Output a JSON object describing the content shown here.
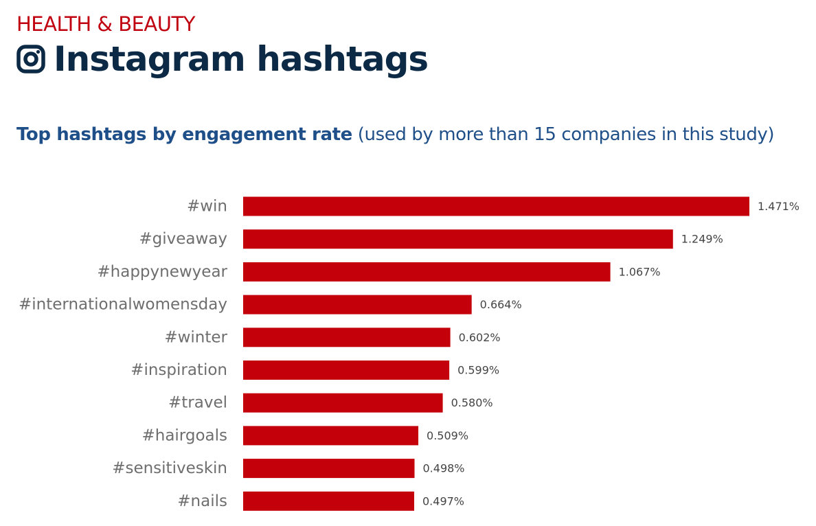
{
  "header": {
    "category": "HEALTH & BEAUTY",
    "title": "Instagram hashtags",
    "icon": "instagram-icon"
  },
  "colors": {
    "category": "#c0000f",
    "title": "#0c2a45",
    "subtitle": "#1f4f88",
    "bar": "#c4000b",
    "tick": "#6e6e6e",
    "value": "#444444"
  },
  "chart_data": {
    "type": "bar",
    "orientation": "horizontal",
    "title": "Top hashtags by engagement rate",
    "subtitle": "(used by more than 15 companies in this study)",
    "xlabel": "",
    "ylabel": "",
    "grid": false,
    "legend": "none",
    "xlim": [
      0,
      1.471
    ],
    "categories": [
      "#win",
      "#giveaway",
      "#happynewyear",
      "#internationalwomensday",
      "#winter",
      "#inspiration",
      "#travel",
      "#hairgoals",
      "#sensitiveskin",
      "#nails"
    ],
    "values": [
      1.471,
      1.249,
      1.067,
      0.664,
      0.602,
      0.599,
      0.58,
      0.509,
      0.498,
      0.497
    ],
    "value_labels": [
      "1.471%",
      "1.249%",
      "1.067%",
      "0.664%",
      "0.602%",
      "0.599%",
      "0.580%",
      "0.509%",
      "0.498%",
      "0.497%"
    ]
  }
}
